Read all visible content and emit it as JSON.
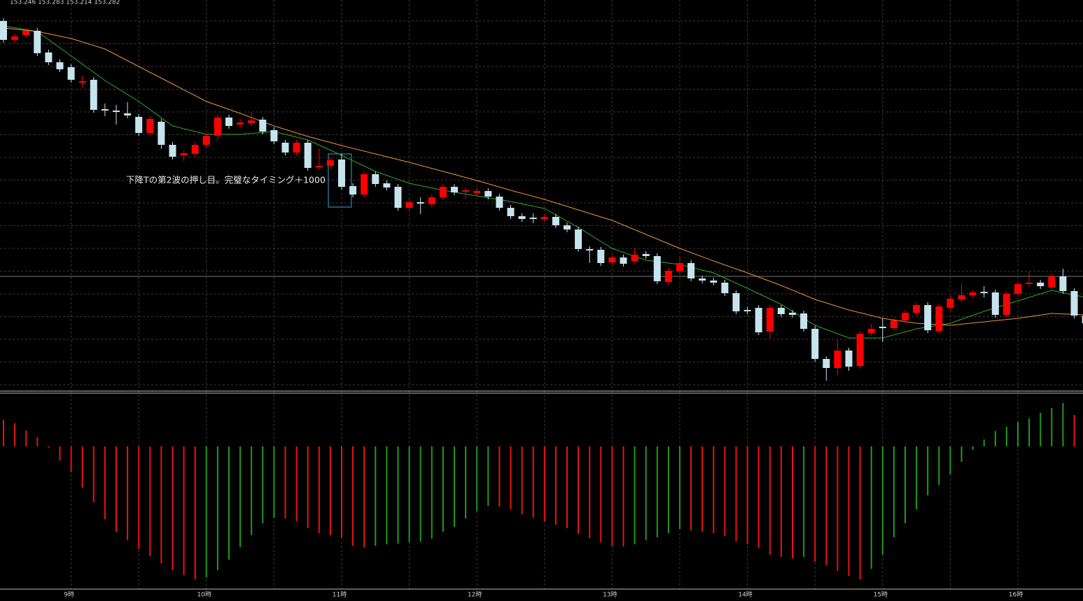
{
  "chart_data": [
    {
      "type": "candlestick",
      "title": "153.246 153.283 153.214 153.282",
      "annotation": "下降Tの第2波の押し目。完璧なタイミング＋1000",
      "up_color": "#ff0000",
      "down_color": "#c6e4ee",
      "ylim": [
        152.772,
        153.33
      ],
      "categories": [
        null,
        null,
        null,
        null,
        null,
        null,
        "9時",
        null,
        null,
        null,
        null,
        null,
        null,
        null,
        null,
        null,
        null,
        null,
        "10時",
        null,
        null,
        null,
        null,
        null,
        null,
        null,
        null,
        null,
        null,
        null,
        "11時",
        null,
        null,
        null,
        null,
        null,
        null,
        null,
        null,
        null,
        null,
        null,
        "12時",
        null,
        null,
        null,
        null,
        null,
        null,
        null,
        null,
        null,
        null,
        null,
        "13時",
        null,
        null,
        null,
        null,
        null,
        null,
        null,
        null,
        null,
        null,
        null,
        "14時",
        null,
        null,
        null,
        null,
        null,
        null,
        null,
        null,
        null,
        null,
        null,
        "15時",
        null,
        null,
        null,
        null,
        null,
        null,
        null,
        null,
        null,
        null,
        null,
        "16時",
        null,
        null,
        null,
        null,
        null,
        null
      ],
      "ohlc": [
        [
          153.3,
          153.304,
          153.269,
          153.273
        ],
        [
          153.273,
          153.282,
          153.269,
          153.278
        ],
        [
          153.28,
          153.29,
          153.276,
          153.286
        ],
        [
          153.286,
          153.29,
          153.25,
          153.254
        ],
        [
          153.255,
          153.259,
          153.237,
          153.241
        ],
        [
          153.241,
          153.245,
          153.227,
          153.231
        ],
        [
          153.234,
          153.238,
          153.212,
          153.216
        ],
        [
          153.212,
          153.222,
          153.204,
          153.214
        ],
        [
          153.216,
          153.22,
          153.169,
          153.173
        ],
        [
          153.174,
          153.182,
          153.164,
          153.172
        ],
        [
          153.172,
          153.18,
          153.152,
          153.17
        ],
        [
          153.168,
          153.184,
          153.161,
          153.165
        ],
        [
          153.163,
          153.167,
          153.136,
          153.14
        ],
        [
          153.14,
          153.164,
          153.136,
          153.16
        ],
        [
          153.156,
          153.16,
          153.117,
          153.123
        ],
        [
          153.123,
          153.127,
          153.102,
          153.106
        ],
        [
          153.108,
          153.115,
          153.1,
          153.111
        ],
        [
          153.11,
          153.127,
          153.106,
          153.123
        ],
        [
          153.123,
          153.14,
          153.119,
          153.136
        ],
        [
          153.136,
          153.166,
          153.13,
          153.162
        ],
        [
          153.162,
          153.166,
          153.146,
          153.15
        ],
        [
          153.152,
          153.16,
          153.148,
          153.155
        ],
        [
          153.154,
          153.17,
          153.15,
          153.158
        ],
        [
          153.159,
          153.163,
          153.138,
          153.142
        ],
        [
          153.144,
          153.148,
          153.124,
          153.128
        ],
        [
          153.126,
          153.13,
          153.108,
          153.112
        ],
        [
          153.112,
          153.13,
          153.108,
          153.126
        ],
        [
          153.126,
          153.13,
          153.086,
          153.09
        ],
        [
          153.091,
          153.118,
          153.087,
          153.093
        ],
        [
          153.093,
          153.105,
          153.089,
          153.101
        ],
        [
          153.102,
          153.11,
          153.059,
          153.063
        ],
        [
          153.064,
          153.068,
          153.048,
          153.052
        ],
        [
          153.052,
          153.085,
          153.048,
          153.081
        ],
        [
          153.081,
          153.085,
          153.063,
          153.067
        ],
        [
          153.068,
          153.072,
          153.058,
          153.062
        ],
        [
          153.063,
          153.067,
          153.029,
          153.033
        ],
        [
          153.033,
          153.045,
          153.029,
          153.041
        ],
        [
          153.041,
          153.048,
          153.024,
          153.039
        ],
        [
          153.038,
          153.052,
          153.034,
          153.048
        ],
        [
          153.048,
          153.067,
          153.044,
          153.063
        ],
        [
          153.063,
          153.067,
          153.051,
          153.055
        ],
        [
          153.056,
          153.062,
          153.046,
          153.058
        ],
        [
          153.054,
          153.061,
          153.05,
          153.057
        ],
        [
          153.057,
          153.061,
          153.045,
          153.049
        ],
        [
          153.049,
          153.053,
          153.029,
          153.033
        ],
        [
          153.033,
          153.037,
          153.017,
          153.021
        ],
        [
          153.021,
          153.025,
          153.013,
          153.017
        ],
        [
          153.019,
          153.025,
          153.011,
          153.017
        ],
        [
          153.017,
          153.024,
          153.013,
          153.02
        ],
        [
          153.02,
          153.024,
          153.004,
          153.008
        ],
        [
          153.008,
          153.012,
          152.998,
          153.002
        ],
        [
          153.002,
          153.006,
          152.97,
          152.974
        ],
        [
          152.974,
          152.978,
          152.954,
          152.972
        ],
        [
          152.973,
          152.977,
          152.95,
          152.954
        ],
        [
          152.955,
          152.966,
          152.951,
          152.962
        ],
        [
          152.962,
          152.966,
          152.949,
          152.953
        ],
        [
          152.957,
          152.976,
          152.953,
          152.966
        ],
        [
          152.967,
          152.971,
          152.96,
          152.964
        ],
        [
          152.964,
          152.968,
          152.924,
          152.928
        ],
        [
          152.927,
          152.947,
          152.923,
          152.943
        ],
        [
          152.942,
          152.964,
          152.938,
          152.954
        ],
        [
          152.954,
          152.958,
          152.928,
          152.932
        ],
        [
          152.932,
          152.936,
          152.925,
          152.929
        ],
        [
          152.929,
          152.933,
          152.922,
          152.926
        ],
        [
          152.926,
          152.93,
          152.907,
          152.911
        ],
        [
          152.911,
          152.915,
          152.881,
          152.885
        ],
        [
          152.887,
          152.891,
          152.881,
          152.885
        ],
        [
          152.89,
          152.894,
          152.851,
          152.855
        ],
        [
          152.856,
          152.894,
          152.846,
          152.89
        ],
        [
          152.89,
          152.894,
          152.877,
          152.881
        ],
        [
          152.883,
          152.887,
          152.876,
          152.88
        ],
        [
          152.882,
          152.886,
          152.856,
          152.86
        ],
        [
          152.86,
          152.864,
          152.813,
          152.817
        ],
        [
          152.817,
          152.821,
          152.786,
          152.804
        ],
        [
          152.804,
          152.845,
          152.794,
          152.829
        ],
        [
          152.829,
          152.833,
          152.8,
          152.806
        ],
        [
          152.807,
          152.857,
          152.803,
          152.853
        ],
        [
          152.854,
          152.867,
          152.85,
          152.86
        ],
        [
          152.863,
          152.875,
          152.841,
          152.861
        ],
        [
          152.861,
          152.876,
          152.857,
          152.872
        ],
        [
          152.872,
          152.887,
          152.868,
          152.883
        ],
        [
          152.883,
          152.898,
          152.879,
          152.894
        ],
        [
          152.894,
          152.898,
          152.854,
          152.858
        ],
        [
          152.857,
          152.896,
          152.853,
          152.892
        ],
        [
          152.89,
          152.907,
          152.886,
          152.903
        ],
        [
          152.902,
          152.925,
          152.898,
          152.908
        ],
        [
          152.908,
          152.915,
          152.904,
          152.912
        ],
        [
          152.913,
          152.921,
          152.905,
          152.911
        ],
        [
          152.912,
          152.916,
          152.876,
          152.88
        ],
        [
          152.88,
          152.914,
          152.876,
          152.91
        ],
        [
          152.91,
          152.928,
          152.906,
          152.924
        ],
        [
          152.924,
          152.942,
          152.92,
          152.926
        ],
        [
          152.926,
          152.93,
          152.917,
          152.921
        ],
        [
          152.919,
          152.939,
          152.915,
          152.935
        ],
        [
          152.935,
          152.946,
          152.91,
          152.914
        ],
        [
          152.914,
          152.918,
          152.875,
          152.879
        ],
        [
          152.879,
          152.883,
          152.864,
          152.868
        ]
      ],
      "series": [
        {
          "color": "#2fa82f",
          "x": [
            0,
            3,
            6,
            9,
            12,
            15,
            18,
            21,
            24,
            27,
            30,
            33,
            36,
            39,
            42,
            45,
            48,
            51,
            54,
            57,
            60,
            63,
            66,
            69,
            72,
            75,
            78,
            81,
            84,
            87,
            90,
            93,
            96
          ],
          "values": [
            153.293,
            153.285,
            153.25,
            153.215,
            153.185,
            153.15,
            153.138,
            153.138,
            153.142,
            153.13,
            153.108,
            153.085,
            153.068,
            153.058,
            153.05,
            153.042,
            153.032,
            153.005,
            152.975,
            152.958,
            152.952,
            152.94,
            152.918,
            152.895,
            152.865,
            152.847,
            152.847,
            152.86,
            152.868,
            152.885,
            152.9,
            152.915,
            152.905
          ]
        },
        {
          "color": "#f0913a",
          "x": [
            0,
            3,
            6,
            9,
            12,
            15,
            18,
            21,
            24,
            27,
            30,
            33,
            36,
            39,
            42,
            45,
            48,
            51,
            54,
            57,
            60,
            63,
            66,
            69,
            72,
            75,
            78,
            81,
            84,
            87,
            90,
            93,
            96
          ],
          "values": [
            153.29,
            153.285,
            153.275,
            153.26,
            153.235,
            153.21,
            153.185,
            153.168,
            153.15,
            153.135,
            153.122,
            153.11,
            153.098,
            153.085,
            153.072,
            153.058,
            153.045,
            153.03,
            153.015,
            152.995,
            152.975,
            152.957,
            152.94,
            152.922,
            152.902,
            152.887,
            152.875,
            152.868,
            152.865,
            152.87,
            152.875,
            152.882,
            152.88
          ]
        }
      ]
    },
    {
      "type": "bar",
      "rise_color": "#1f9a1f",
      "fall_color": "#ee1111",
      "ylim": [
        -202,
        73
      ],
      "values": [
        38,
        33,
        23,
        13,
        -2,
        -20,
        -37,
        -59,
        -80,
        -104,
        -122,
        -134,
        -147,
        -157,
        -167,
        -177,
        -184,
        -190,
        -187,
        -177,
        -162,
        -144,
        -127,
        -110,
        -102,
        -103,
        -107,
        -117,
        -124,
        -127,
        -130,
        -142,
        -145,
        -142,
        -140,
        -139,
        -137,
        -136,
        -132,
        -122,
        -115,
        -103,
        -93,
        -85,
        -86,
        -90,
        -97,
        -102,
        -107,
        -112,
        -117,
        -125,
        -131,
        -137,
        -142,
        -143,
        -140,
        -134,
        -130,
        -124,
        -118,
        -120,
        -122,
        -124,
        -128,
        -136,
        -140,
        -145,
        -155,
        -158,
        -160,
        -158,
        -165,
        -170,
        -178,
        -185,
        -190,
        -175,
        -155,
        -130,
        -110,
        -90,
        -70,
        -55,
        -40,
        -22,
        -5,
        10,
        22,
        28,
        35,
        40,
        48,
        55,
        62,
        45,
        30
      ]
    }
  ]
}
